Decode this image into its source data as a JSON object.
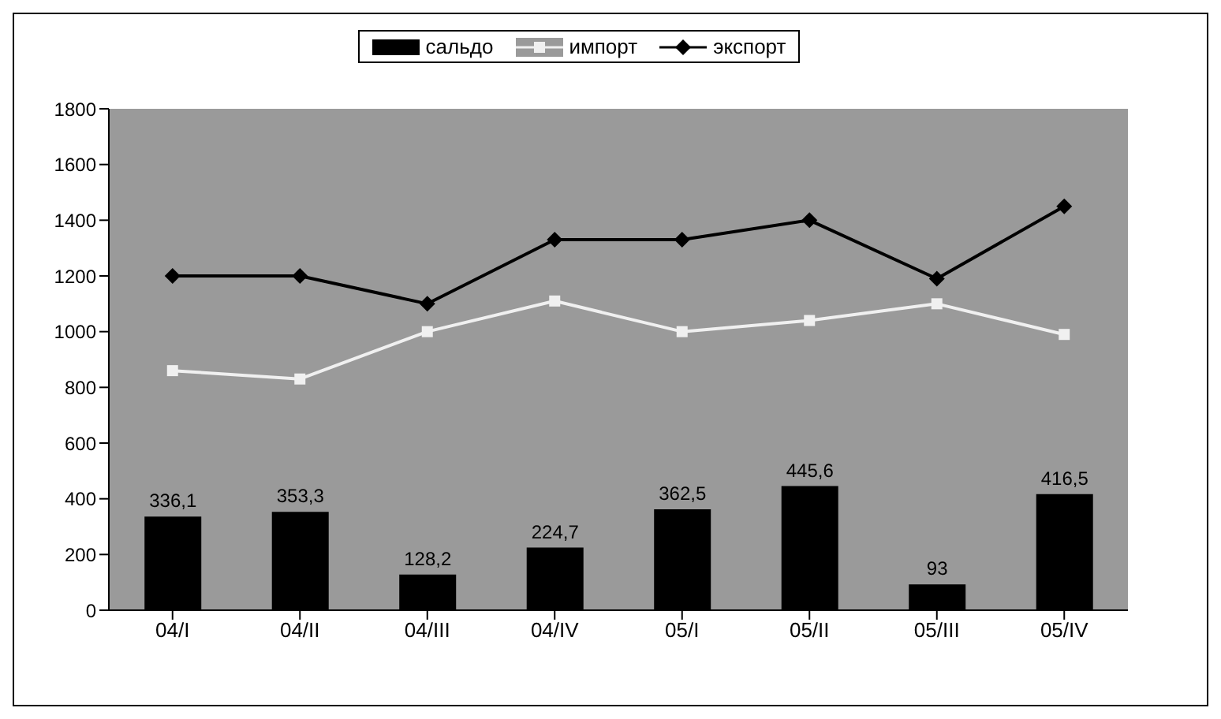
{
  "chart_data": {
    "type": "bar",
    "categories": [
      "04/I",
      "04/II",
      "04/III",
      "04/IV",
      "05/I",
      "05/II",
      "05/III",
      "05/IV"
    ],
    "series": [
      {
        "name": "сальдо",
        "color": "#000000",
        "values": [
          336.1,
          353.3,
          128.2,
          224.7,
          362.5,
          445.6,
          93,
          416.5
        ],
        "value_labels": [
          "336,1",
          "353,3",
          "128,2",
          "224,7",
          "362,5",
          "445,6",
          "93",
          "416,5"
        ]
      },
      {
        "name": "импорт",
        "type": "line",
        "color": "#f0f0f0",
        "marker": "square",
        "values": [
          860,
          830,
          1000,
          1110,
          1000,
          1040,
          1100,
          990
        ]
      },
      {
        "name": "экспорт",
        "type": "line",
        "color": "#000000",
        "marker": "diamond",
        "values": [
          1200,
          1200,
          1100,
          1330,
          1330,
          1400,
          1190,
          1450
        ]
      }
    ],
    "ylim": [
      0,
      1800
    ],
    "yticks": [
      0,
      200,
      400,
      600,
      800,
      1000,
      1200,
      1400,
      1600,
      1800
    ],
    "grid": false,
    "legend": "top",
    "line_style": "solid"
  }
}
